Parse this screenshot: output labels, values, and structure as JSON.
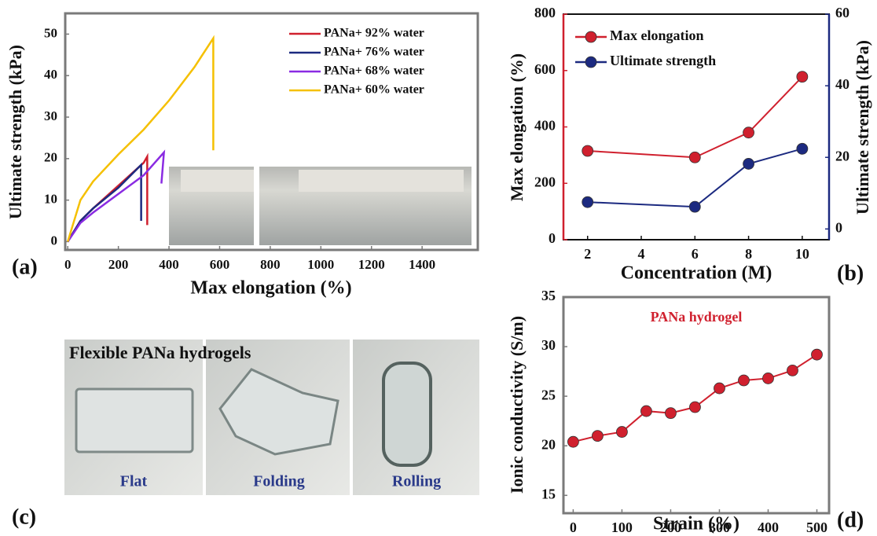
{
  "chart_data": [
    {
      "type": "line",
      "panel_label": "(a)",
      "xlabel": "Max elongation (%)",
      "ylabel": "Ultimate strength (kPa)",
      "xlim": [
        -10,
        1620
      ],
      "ylim": [
        -2,
        55
      ],
      "xticks": [
        0,
        200,
        400,
        600,
        800,
        1000,
        1200,
        1400
      ],
      "yticks": [
        0,
        10,
        20,
        30,
        40,
        50
      ],
      "legend": "upper right",
      "series": [
        {
          "name": "PANa+ 92% water",
          "color": "#d0202e",
          "x": [
            0,
            50,
            100,
            200,
            300,
            314,
            314
          ],
          "values": [
            0,
            5,
            8,
            13.5,
            19,
            20.5,
            4
          ]
        },
        {
          "name": "PANa+ 76% water",
          "color": "#1c2a80",
          "x": [
            0,
            50,
            100,
            200,
            290,
            290
          ],
          "values": [
            0,
            5,
            8,
            13,
            18.5,
            5
          ]
        },
        {
          "name": "PANa+ 68% water",
          "color": "#8a2be2",
          "x": [
            0,
            50,
            100,
            200,
            300,
            380,
            370
          ],
          "values": [
            0,
            4.5,
            7,
            11.5,
            16,
            21.5,
            14
          ]
        },
        {
          "name": "PANa+ 60% water",
          "color": "#f5c000",
          "x": [
            0,
            50,
            100,
            200,
            300,
            400,
            500,
            575,
            575
          ],
          "values": [
            0,
            10,
            14.5,
            21,
            27,
            34,
            42,
            49,
            22
          ]
        }
      ]
    },
    {
      "type": "line",
      "panel_label": "(b)",
      "markers": true,
      "xlabel": "Concentration (M)",
      "ylabel": "Max elongation (%)",
      "y2label": "Ultimate strength (kPa)",
      "xlim": [
        1.1,
        11
      ],
      "ylim": [
        0,
        800
      ],
      "y2lim": [
        -3,
        60
      ],
      "xticks": [
        2,
        4,
        6,
        8,
        10
      ],
      "yticks": [
        0,
        200,
        400,
        600,
        800
      ],
      "y2ticks": [
        0,
        20,
        40,
        60
      ],
      "legend": "upper left",
      "x": [
        2,
        6,
        8,
        10
      ],
      "series": [
        {
          "name": "Max elongation",
          "color": "#d0202e",
          "values": [
            315,
            292,
            380,
            578
          ]
        },
        {
          "name": "Ultimate strength",
          "color": "#1c2a80",
          "axis": "y2",
          "values": [
            7.5,
            6.2,
            18.2,
            22.4
          ]
        }
      ]
    },
    {
      "type": "line",
      "panel_label": "(d)",
      "markers": true,
      "xlabel": "Strain (%)",
      "ylabel": "Ionic conductivity (S/m)",
      "annotation": "PANa hydrogel",
      "xlim": [
        -20,
        525
      ],
      "ylim": [
        13.2,
        35
      ],
      "xticks": [
        0,
        100,
        200,
        300,
        400,
        500
      ],
      "yticks": [
        15,
        20,
        25,
        30,
        35
      ],
      "x": [
        0,
        50,
        100,
        150,
        200,
        250,
        300,
        350,
        400,
        450,
        500
      ],
      "series": [
        {
          "name": "PANa hydrogel",
          "color": "#d0202e",
          "values": [
            20.4,
            21,
            21.4,
            23.5,
            23.3,
            23.9,
            25.8,
            26.6,
            26.8,
            27.6,
            29.2
          ]
        }
      ]
    }
  ],
  "photos": {
    "panel_label": "(c)",
    "title": "Flexible PANa hydrogels",
    "captions": [
      "Flat",
      "Folding",
      "Rolling"
    ]
  }
}
